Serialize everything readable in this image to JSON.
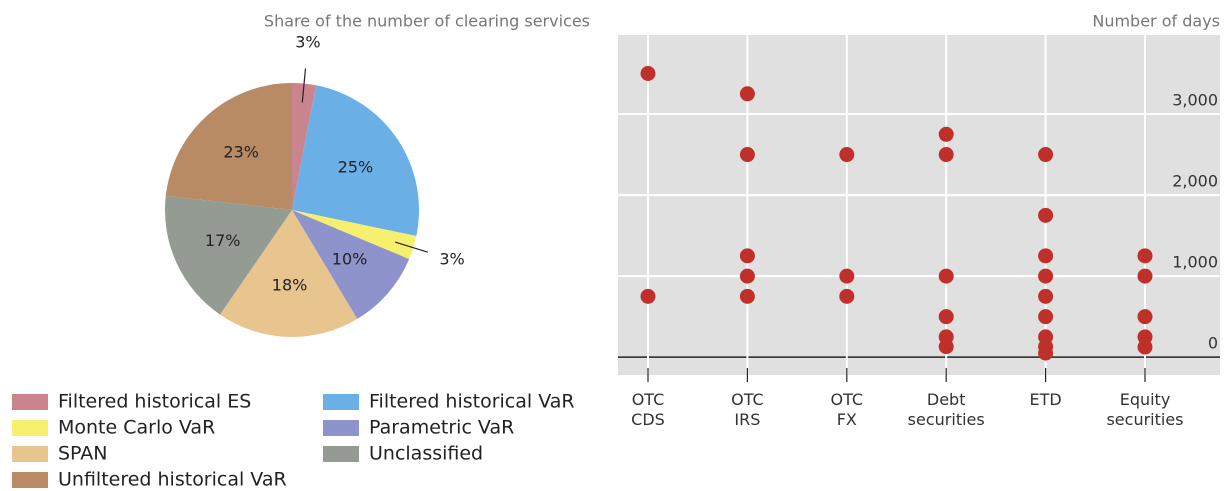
{
  "chart_data": [
    {
      "type": "pie",
      "title": "Share of the number of clearing services",
      "categories": [
        "Filtered historical ES",
        "Filtered historical VaR",
        "Monte Carlo VaR",
        "Parametric VaR",
        "SPAN",
        "Unclassified",
        "Unfiltered historical VaR"
      ],
      "values": [
        3,
        25,
        3,
        10,
        18,
        17,
        23
      ],
      "value_labels": [
        "3%",
        "25%",
        "3%",
        "10%",
        "18%",
        "17%",
        "23%"
      ],
      "colors": [
        "#c9848e",
        "#6ab0e6",
        "#f7ef6e",
        "#8e93cc",
        "#e8c48e",
        "#939b93",
        "#b98b65"
      ]
    },
    {
      "type": "scatter",
      "title": "Number of days",
      "categories": [
        "OTC CDS",
        "OTC IRS",
        "OTC FX",
        "Debt securities",
        "ETD",
        "Equity securities"
      ],
      "x": [
        "OTC CDS",
        "OTC CDS",
        "OTC IRS",
        "OTC IRS",
        "OTC IRS",
        "OTC IRS",
        "OTC IRS",
        "OTC FX",
        "OTC FX",
        "OTC FX",
        "Debt securities",
        "Debt securities",
        "Debt securities",
        "Debt securities",
        "Debt securities",
        "Debt securities",
        "ETD",
        "ETD",
        "ETD",
        "ETD",
        "ETD",
        "ETD",
        "ETD",
        "ETD",
        "ETD",
        "Equity securities",
        "Equity securities",
        "Equity securities",
        "Equity securities",
        "Equity securities"
      ],
      "values": [
        3500,
        750,
        3250,
        2500,
        1250,
        1000,
        750,
        2500,
        1000,
        750,
        2750,
        2500,
        1000,
        500,
        250,
        130,
        2500,
        1750,
        1250,
        1000,
        750,
        500,
        250,
        130,
        50,
        1250,
        1000,
        500,
        250,
        125
      ],
      "color": "#c0302b",
      "ylim": [
        -220,
        3975
      ],
      "yticks": [
        0,
        {
          "value": 1000,
          "label": "1,000"
        },
        {
          "value": 2000,
          "label": "2,000"
        },
        {
          "value": 3000,
          "label": "3,000"
        }
      ],
      "grid": true
    }
  ]
}
